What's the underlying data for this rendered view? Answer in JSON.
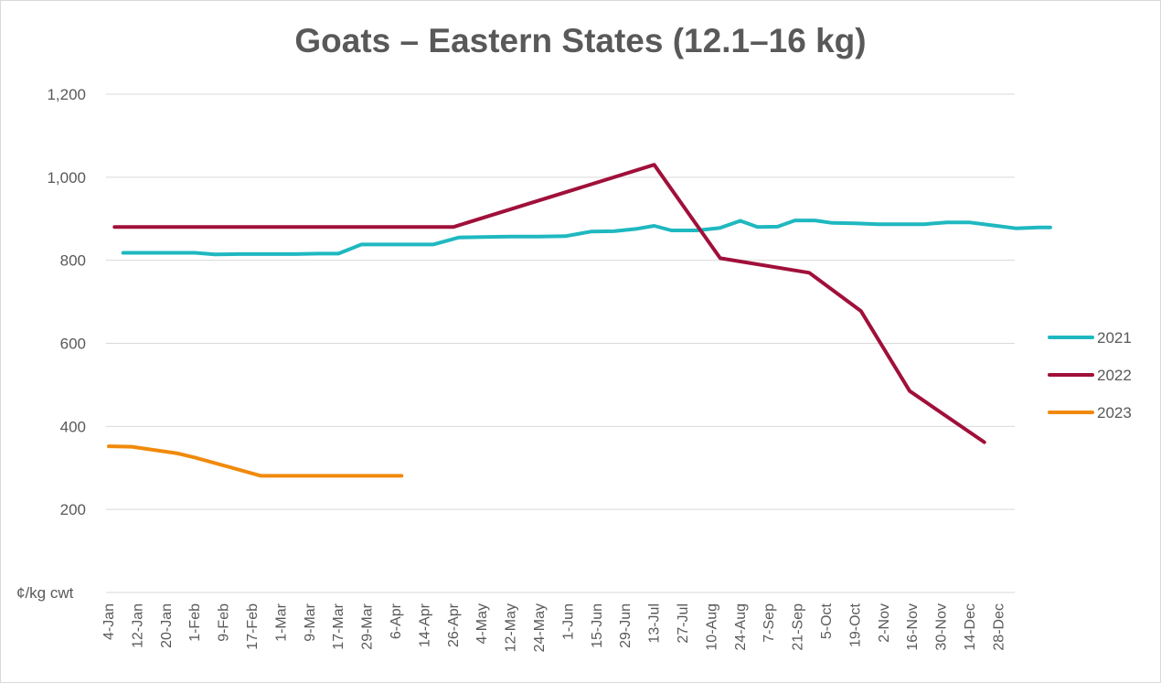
{
  "chart_data": {
    "type": "line",
    "title": "Goats – Eastern States (12.1–16 kg)",
    "ylabel": "¢/kg cwt",
    "ylim": [
      0,
      1200
    ],
    "yticks": [
      200,
      400,
      600,
      800,
      1000,
      1200
    ],
    "ytick_labels": [
      "200",
      "400",
      "600",
      "800",
      "1,000",
      "1,200"
    ],
    "grid": true,
    "legend_position": "right",
    "categories": [
      "4-Jan",
      "12-Jan",
      "20-Jan",
      "1-Feb",
      "9-Feb",
      "17-Feb",
      "1-Mar",
      "9-Mar",
      "17-Mar",
      "29-Mar",
      "6-Apr",
      "14-Apr",
      "26-Apr",
      "4-May",
      "12-May",
      "24-May",
      "1-Jun",
      "15-Jun",
      "29-Jun",
      "13-Jul",
      "27-Jul",
      "10-Aug",
      "24-Aug",
      "7-Sep",
      "21-Sep",
      "5-Oct",
      "19-Oct",
      "2-Nov",
      "16-Nov",
      "30-Nov",
      "14-Dec",
      "28-Dec"
    ],
    "series": [
      {
        "name": "2021",
        "color": "#1fb8c0",
        "points": [
          [
            0.5,
            818
          ],
          [
            1,
            818
          ],
          [
            2,
            818
          ],
          [
            3,
            818
          ],
          [
            3.7,
            814
          ],
          [
            4.5,
            815
          ],
          [
            5.5,
            815
          ],
          [
            6.5,
            815
          ],
          [
            7.3,
            816
          ],
          [
            8,
            816
          ],
          [
            8.8,
            838
          ],
          [
            9.5,
            838
          ],
          [
            10.5,
            838
          ],
          [
            11.3,
            838
          ],
          [
            12.2,
            855
          ],
          [
            13,
            856
          ],
          [
            14,
            857
          ],
          [
            15,
            857
          ],
          [
            15.9,
            858
          ],
          [
            16.8,
            869
          ],
          [
            17.6,
            870
          ],
          [
            18.4,
            876
          ],
          [
            19,
            883
          ],
          [
            19.6,
            872
          ],
          [
            20.5,
            872
          ],
          [
            21.3,
            878
          ],
          [
            22,
            895
          ],
          [
            22.6,
            880
          ],
          [
            23.3,
            881
          ],
          [
            23.9,
            896
          ],
          [
            24.6,
            896
          ],
          [
            25.2,
            890
          ],
          [
            26,
            889
          ],
          [
            26.8,
            887
          ],
          [
            27.6,
            887
          ],
          [
            28.4,
            887
          ],
          [
            29.2,
            891
          ],
          [
            30,
            891
          ],
          [
            30.8,
            884
          ],
          [
            31.6,
            877
          ],
          [
            32.4,
            879
          ],
          [
            32.8,
            879
          ]
        ],
        "comment": "x positions are fractional category indices (weekly data between labelled ticks)"
      },
      {
        "name": "2022",
        "color": "#a0103a",
        "points": [
          [
            0.2,
            880
          ],
          [
            12,
            880
          ],
          [
            19,
            1030
          ],
          [
            21.3,
            805
          ],
          [
            24.4,
            770
          ],
          [
            26.2,
            678
          ],
          [
            27.9,
            485
          ],
          [
            30.5,
            362
          ]
        ]
      },
      {
        "name": "2023",
        "color": "#f08a0c",
        "points": [
          [
            0,
            352
          ],
          [
            0.8,
            351
          ],
          [
            2.4,
            335
          ],
          [
            3,
            325
          ],
          [
            5.3,
            281
          ],
          [
            10.2,
            281
          ]
        ]
      }
    ]
  }
}
